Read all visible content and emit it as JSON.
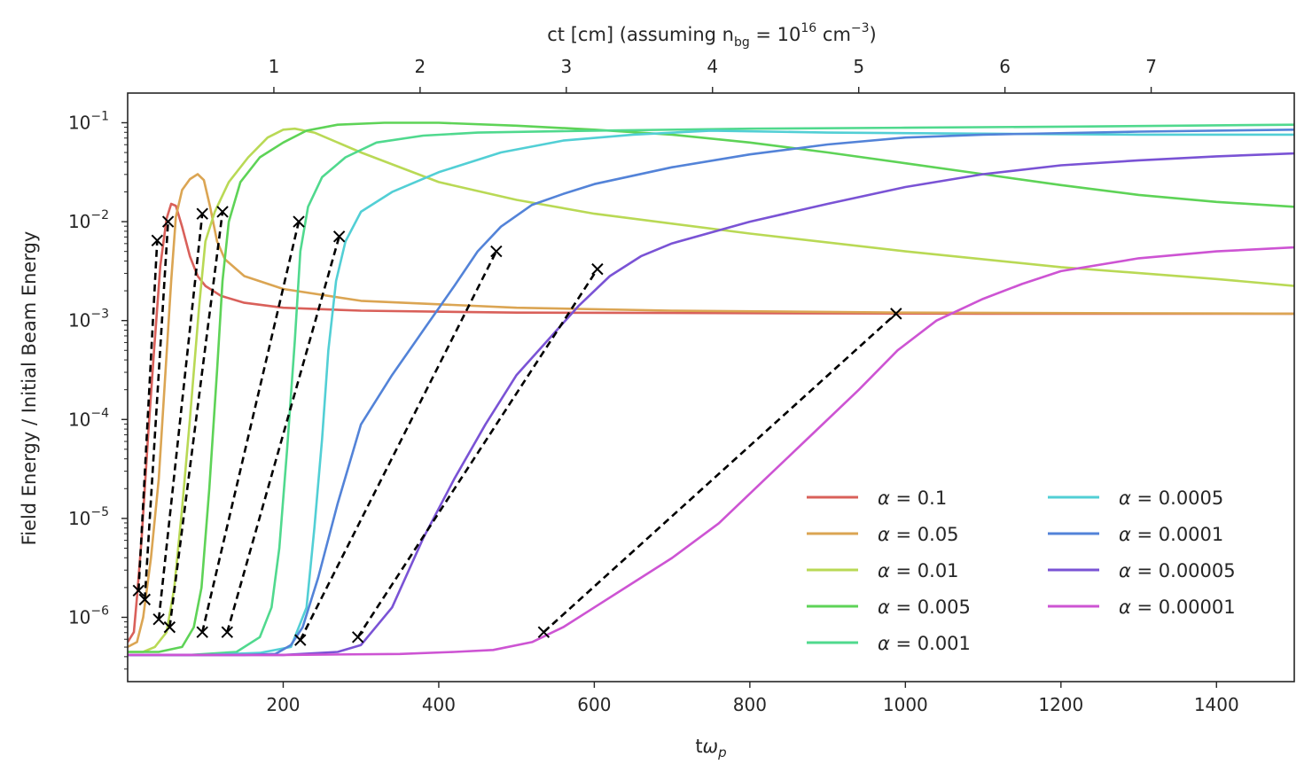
{
  "chart_data": {
    "type": "line",
    "xlabel_main": "t",
    "xlabel_omega": "ω",
    "xlabel_sub": "p",
    "ylabel": "Field Energy / Initial Beam Energy",
    "top_xlabel_parts": {
      "prefix": "ct [cm]  (assuming n",
      "sub": "bg",
      "mid": " = 10",
      "sup": "16",
      "unit": " cm",
      "unit_sup": "−3",
      "suffix": ")"
    },
    "xlim": [
      0,
      1500
    ],
    "ylim_log10": [
      -6.65,
      -0.7
    ],
    "y_scale": "log",
    "x_ticks": [
      200,
      400,
      600,
      800,
      1000,
      1200,
      1400
    ],
    "x_tick_labels": [
      "200",
      "400",
      "600",
      "800",
      "1000",
      "1200",
      "1400"
    ],
    "y_ticks": [
      {
        "exp": -1,
        "base": "10",
        "sup": "−1"
      },
      {
        "exp": -2,
        "base": "10",
        "sup": "−2"
      },
      {
        "exp": -3,
        "base": "10",
        "sup": "−3"
      },
      {
        "exp": -4,
        "base": "10",
        "sup": "−4"
      },
      {
        "exp": -5,
        "base": "10",
        "sup": "−5"
      },
      {
        "exp": -6,
        "base": "10",
        "sup": "−6"
      }
    ],
    "top_axis_scale_tw_per_cm": 188,
    "top_ticks": [
      {
        "value": 1,
        "label": "1"
      },
      {
        "value": 2,
        "label": "2"
      },
      {
        "value": 3,
        "label": "3"
      },
      {
        "value": 4,
        "label": "4"
      },
      {
        "value": 5,
        "label": "5"
      },
      {
        "value": 6,
        "label": "6"
      },
      {
        "value": 7,
        "label": "7"
      }
    ],
    "legend_placement": "lower-right",
    "legend_prefix": "α = ",
    "series": [
      {
        "name": "0.1",
        "color": "#d9605a",
        "points": [
          [
            0,
            -6.25
          ],
          [
            8,
            -6.15
          ],
          [
            12,
            -5.8
          ],
          [
            18,
            -5.2
          ],
          [
            26,
            -4.2
          ],
          [
            34,
            -3.3
          ],
          [
            42,
            -2.45
          ],
          [
            50,
            -1.97
          ],
          [
            56,
            -1.82
          ],
          [
            62,
            -1.84
          ],
          [
            70,
            -2.05
          ],
          [
            80,
            -2.35
          ],
          [
            90,
            -2.55
          ],
          [
            100,
            -2.65
          ],
          [
            120,
            -2.75
          ],
          [
            150,
            -2.82
          ],
          [
            200,
            -2.87
          ],
          [
            300,
            -2.9
          ],
          [
            500,
            -2.92
          ],
          [
            800,
            -2.925
          ],
          [
            1100,
            -2.93
          ],
          [
            1500,
            -2.93
          ]
        ]
      },
      {
        "name": "0.05",
        "color": "#dba553",
        "points": [
          [
            0,
            -6.3
          ],
          [
            12,
            -6.25
          ],
          [
            20,
            -6.0
          ],
          [
            30,
            -5.4
          ],
          [
            40,
            -4.6
          ],
          [
            48,
            -3.6
          ],
          [
            56,
            -2.6
          ],
          [
            62,
            -1.95
          ],
          [
            70,
            -1.68
          ],
          [
            80,
            -1.57
          ],
          [
            90,
            -1.52
          ],
          [
            98,
            -1.58
          ],
          [
            106,
            -1.85
          ],
          [
            115,
            -2.2
          ],
          [
            125,
            -2.38
          ],
          [
            150,
            -2.55
          ],
          [
            200,
            -2.68
          ],
          [
            300,
            -2.8
          ],
          [
            500,
            -2.87
          ],
          [
            700,
            -2.9
          ],
          [
            1000,
            -2.92
          ],
          [
            1500,
            -2.93
          ]
        ]
      },
      {
        "name": "0.01",
        "color": "#b9d955",
        "points": [
          [
            0,
            -6.35
          ],
          [
            20,
            -6.35
          ],
          [
            35,
            -6.3
          ],
          [
            50,
            -6.15
          ],
          [
            60,
            -5.7
          ],
          [
            70,
            -4.9
          ],
          [
            80,
            -4.0
          ],
          [
            92,
            -2.85
          ],
          [
            100,
            -2.2
          ],
          [
            112,
            -1.9
          ],
          [
            130,
            -1.6
          ],
          [
            155,
            -1.35
          ],
          [
            180,
            -1.15
          ],
          [
            200,
            -1.07
          ],
          [
            215,
            -1.06
          ],
          [
            240,
            -1.1
          ],
          [
            300,
            -1.3
          ],
          [
            400,
            -1.6
          ],
          [
            500,
            -1.78
          ],
          [
            600,
            -1.92
          ],
          [
            800,
            -2.12
          ],
          [
            1000,
            -2.3
          ],
          [
            1200,
            -2.46
          ],
          [
            1400,
            -2.58
          ],
          [
            1500,
            -2.65
          ]
        ]
      },
      {
        "name": "0.005",
        "color": "#5ed357",
        "points": [
          [
            0,
            -6.35
          ],
          [
            40,
            -6.35
          ],
          [
            70,
            -6.3
          ],
          [
            85,
            -6.1
          ],
          [
            95,
            -5.7
          ],
          [
            105,
            -4.7
          ],
          [
            115,
            -3.5
          ],
          [
            122,
            -2.6
          ],
          [
            130,
            -2.0
          ],
          [
            145,
            -1.6
          ],
          [
            170,
            -1.35
          ],
          [
            200,
            -1.2
          ],
          [
            230,
            -1.08
          ],
          [
            270,
            -1.02
          ],
          [
            330,
            -1.0
          ],
          [
            400,
            -1.0
          ],
          [
            500,
            -1.03
          ],
          [
            600,
            -1.07
          ],
          [
            700,
            -1.12
          ],
          [
            800,
            -1.2
          ],
          [
            900,
            -1.3
          ],
          [
            1000,
            -1.41
          ],
          [
            1100,
            -1.52
          ],
          [
            1200,
            -1.63
          ],
          [
            1300,
            -1.73
          ],
          [
            1400,
            -1.8
          ],
          [
            1500,
            -1.85
          ]
        ]
      },
      {
        "name": "0.001",
        "color": "#50d98e",
        "points": [
          [
            0,
            -6.38
          ],
          [
            80,
            -6.38
          ],
          [
            140,
            -6.35
          ],
          [
            170,
            -6.2
          ],
          [
            185,
            -5.9
          ],
          [
            195,
            -5.3
          ],
          [
            205,
            -4.3
          ],
          [
            215,
            -3.2
          ],
          [
            222,
            -2.3
          ],
          [
            232,
            -1.85
          ],
          [
            250,
            -1.55
          ],
          [
            280,
            -1.35
          ],
          [
            320,
            -1.2
          ],
          [
            380,
            -1.13
          ],
          [
            450,
            -1.1
          ],
          [
            600,
            -1.08
          ],
          [
            800,
            -1.06
          ],
          [
            1000,
            -1.05
          ],
          [
            1200,
            -1.04
          ],
          [
            1500,
            -1.02
          ]
        ]
      },
      {
        "name": "0.0005",
        "color": "#52cfd5",
        "points": [
          [
            0,
            -6.38
          ],
          [
            100,
            -6.38
          ],
          [
            170,
            -6.36
          ],
          [
            210,
            -6.3
          ],
          [
            230,
            -5.9
          ],
          [
            240,
            -5.1
          ],
          [
            250,
            -4.2
          ],
          [
            258,
            -3.3
          ],
          [
            268,
            -2.6
          ],
          [
            280,
            -2.2
          ],
          [
            300,
            -1.9
          ],
          [
            340,
            -1.7
          ],
          [
            400,
            -1.5
          ],
          [
            480,
            -1.3
          ],
          [
            560,
            -1.18
          ],
          [
            650,
            -1.12
          ],
          [
            750,
            -1.08
          ],
          [
            900,
            -1.1
          ],
          [
            1100,
            -1.11
          ],
          [
            1300,
            -1.12
          ],
          [
            1500,
            -1.12
          ]
        ]
      },
      {
        "name": "0.0001",
        "color": "#5383d8",
        "points": [
          [
            0,
            -6.38
          ],
          [
            150,
            -6.38
          ],
          [
            190,
            -6.37
          ],
          [
            210,
            -6.28
          ],
          [
            225,
            -6.1
          ],
          [
            245,
            -5.6
          ],
          [
            270,
            -4.85
          ],
          [
            300,
            -4.05
          ],
          [
            340,
            -3.55
          ],
          [
            380,
            -3.1
          ],
          [
            420,
            -2.65
          ],
          [
            450,
            -2.3
          ],
          [
            480,
            -2.05
          ],
          [
            520,
            -1.83
          ],
          [
            560,
            -1.72
          ],
          [
            600,
            -1.62
          ],
          [
            700,
            -1.45
          ],
          [
            800,
            -1.32
          ],
          [
            900,
            -1.22
          ],
          [
            1000,
            -1.15
          ],
          [
            1100,
            -1.12
          ],
          [
            1300,
            -1.09
          ],
          [
            1500,
            -1.07
          ]
        ]
      },
      {
        "name": "0.00005",
        "color": "#7a53d5",
        "points": [
          [
            0,
            -6.38
          ],
          [
            200,
            -6.38
          ],
          [
            270,
            -6.35
          ],
          [
            300,
            -6.28
          ],
          [
            340,
            -5.9
          ],
          [
            380,
            -5.2
          ],
          [
            420,
            -4.6
          ],
          [
            460,
            -4.05
          ],
          [
            500,
            -3.55
          ],
          [
            540,
            -3.2
          ],
          [
            580,
            -2.85
          ],
          [
            620,
            -2.55
          ],
          [
            660,
            -2.35
          ],
          [
            700,
            -2.22
          ],
          [
            800,
            -2.0
          ],
          [
            900,
            -1.82
          ],
          [
            1000,
            -1.65
          ],
          [
            1100,
            -1.52
          ],
          [
            1200,
            -1.43
          ],
          [
            1300,
            -1.38
          ],
          [
            1400,
            -1.34
          ],
          [
            1500,
            -1.31
          ]
        ]
      },
      {
        "name": "0.00001",
        "color": "#cd54d3",
        "points": [
          [
            0,
            -6.38
          ],
          [
            200,
            -6.38
          ],
          [
            350,
            -6.37
          ],
          [
            420,
            -6.35
          ],
          [
            470,
            -6.33
          ],
          [
            520,
            -6.25
          ],
          [
            560,
            -6.1
          ],
          [
            600,
            -5.9
          ],
          [
            650,
            -5.65
          ],
          [
            700,
            -5.4
          ],
          [
            760,
            -5.05
          ],
          [
            820,
            -4.6
          ],
          [
            880,
            -4.15
          ],
          [
            940,
            -3.7
          ],
          [
            990,
            -3.3
          ],
          [
            1040,
            -3.0
          ],
          [
            1100,
            -2.78
          ],
          [
            1150,
            -2.63
          ],
          [
            1200,
            -2.5
          ],
          [
            1300,
            -2.37
          ],
          [
            1400,
            -2.3
          ],
          [
            1500,
            -2.26
          ]
        ]
      }
    ],
    "fit_segments": [
      {
        "start": [
          14,
          -5.73
        ],
        "end": [
          38,
          -2.19
        ]
      },
      {
        "start": [
          22,
          -5.82
        ],
        "end": [
          52,
          -2.0
        ]
      },
      {
        "start": [
          40,
          -6.02
        ],
        "end": [
          96,
          -1.92
        ]
      },
      {
        "start": [
          54,
          -6.1
        ],
        "end": [
          122,
          -1.9
        ]
      },
      {
        "start": [
          96,
          -6.15
        ],
        "end": [
          220,
          -2.0
        ]
      },
      {
        "start": [
          128,
          -6.15
        ],
        "end": [
          272,
          -2.15
        ]
      },
      {
        "start": [
          222,
          -6.23
        ],
        "end": [
          474,
          -2.3
        ]
      },
      {
        "start": [
          296,
          -6.2
        ],
        "end": [
          604,
          -2.48
        ]
      },
      {
        "start": [
          535,
          -6.15
        ],
        "end": [
          988,
          -2.93
        ]
      }
    ]
  }
}
